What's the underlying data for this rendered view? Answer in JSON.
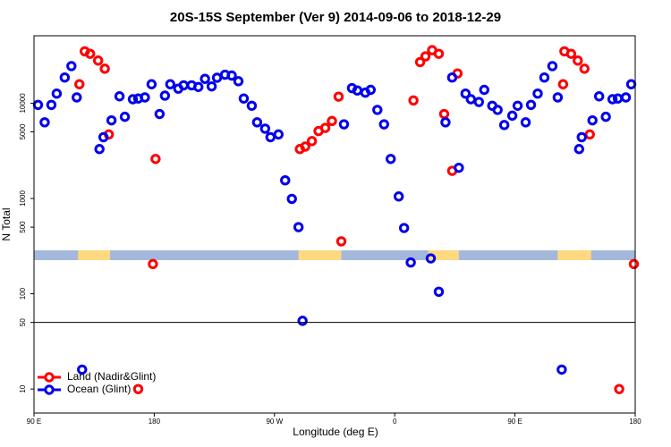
{
  "chart_data": {
    "type": "scatter",
    "title": "20S-15S September (Ver 9)   2014-09-06 to 2018-12-29",
    "x_label": "Longitude (deg E)",
    "y_label": "N Total",
    "log_y": true,
    "xlim": [
      90,
      540
    ],
    "ylim": [
      5.6,
      51000
    ],
    "xticks": [
      {
        "value": 90,
        "label": "90 E"
      },
      180,
      {
        "value": 270,
        "label": "90 W"
      },
      {
        "value": 360,
        "label": "0"
      },
      {
        "value": 450,
        "label": "90 E"
      },
      {
        "value": 540,
        "label": "180"
      }
    ],
    "yticks": [
      10,
      50,
      100,
      500,
      1000,
      5000,
      10000
    ],
    "hline": 50,
    "land_strip": [
      [
        123,
        147
      ],
      [
        288,
        320
      ],
      [
        385,
        408
      ],
      [
        482,
        507
      ]
    ],
    "legend": "bottom-left",
    "series": [
      {
        "name": "Land (Nadir&Glint)",
        "color": "#ff0000",
        "x": [
          124,
          128,
          132,
          138,
          143,
          146,
          181,
          179,
          289,
          293,
          298,
          303,
          308,
          313,
          318,
          320,
          374,
          379,
          383,
          388,
          393,
          397,
          403,
          407,
          486,
          487,
          492,
          497,
          502,
          506,
          539,
          528,
          168
        ],
        "values": [
          15800,
          35000,
          33000,
          28000,
          23000,
          4700,
          2600,
          205,
          3300,
          3500,
          4000,
          5100,
          5500,
          6500,
          11700,
          355,
          10700,
          27000,
          31000,
          36000,
          33000,
          7700,
          1950,
          20500,
          15800,
          35000,
          33000,
          28000,
          23000,
          4700,
          205,
          10,
          10
        ]
      },
      {
        "name": "Ocean (Glint)",
        "color": "#0000ee",
        "x": [
          93,
          98,
          103,
          107,
          113,
          118,
          122,
          126,
          139,
          142,
          148,
          154,
          158,
          164,
          168,
          173,
          178,
          184,
          188,
          192,
          198,
          202,
          208,
          213,
          218,
          223,
          227,
          233,
          238,
          243,
          247,
          253,
          257,
          263,
          267,
          273,
          278,
          283,
          288,
          291,
          322,
          328,
          332,
          338,
          342,
          347,
          352,
          357,
          363,
          367,
          372,
          387,
          393,
          398,
          403,
          408,
          413,
          417,
          423,
          427,
          433,
          437,
          442,
          448,
          452,
          458,
          462,
          467,
          472,
          478,
          482,
          485,
          498,
          500,
          508,
          513,
          518,
          523,
          527,
          533,
          537
        ],
        "values": [
          9600,
          6300,
          9600,
          12600,
          18600,
          24500,
          11500,
          16,
          3300,
          4400,
          6600,
          11800,
          7200,
          11000,
          11200,
          11500,
          15800,
          7700,
          12000,
          15800,
          14200,
          15400,
          15400,
          14800,
          18000,
          15000,
          18500,
          19900,
          19500,
          17000,
          11200,
          9400,
          6300,
          5400,
          4400,
          4700,
          1550,
          990,
          500,
          52,
          6000,
          14400,
          13600,
          12900,
          13800,
          8500,
          6000,
          2600,
          1050,
          490,
          213,
          235,
          105,
          6300,
          18600,
          2100,
          12600,
          11000,
          10300,
          13800,
          9400,
          8500,
          5900,
          7400,
          9400,
          6300,
          9600,
          12600,
          18600,
          24500,
          11500,
          16,
          3300,
          4400,
          6600,
          11800,
          7200,
          11000,
          11200,
          11500,
          15800
        ]
      }
    ]
  }
}
